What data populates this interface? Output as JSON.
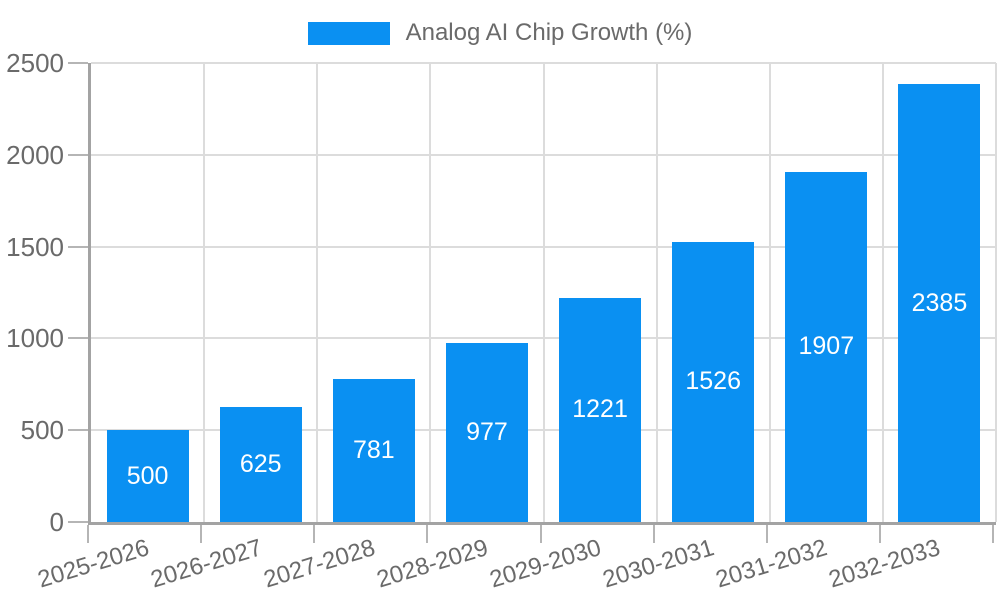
{
  "legend": {
    "label": "Analog AI Chip Growth (%)",
    "swatch_color": "#0a90f2",
    "position": "top-center"
  },
  "chart_data": {
    "type": "bar",
    "title": "",
    "xlabel": "",
    "ylabel": "",
    "categories": [
      "2025-2026",
      "2026-2027",
      "2027-2028",
      "2028-2029",
      "2029-2030",
      "2030-2031",
      "2031-2032",
      "2032-2033"
    ],
    "series": [
      {
        "name": "Analog AI Chip Growth (%)",
        "values": [
          500,
          625,
          781,
          977,
          1221,
          1526,
          1907,
          2385
        ]
      }
    ],
    "value_labels": {
      "visible": true,
      "position": "inside-center",
      "color": "#ffffff"
    },
    "ylim": [
      0,
      2500
    ],
    "yticks": [
      0,
      500,
      1000,
      1500,
      2000,
      2500
    ],
    "grid": true,
    "xtick_label_rotation_deg": 17,
    "legend_position": "top-center",
    "colors": {
      "bar": "#0a90f2",
      "gridline": "#dcdcdc",
      "axis": "#a3a3a3",
      "tick": "#b5b5b5",
      "tick_label_text": "#6a6a6a",
      "legend_text": "#6a6a6a",
      "background": "#ffffff"
    }
  }
}
